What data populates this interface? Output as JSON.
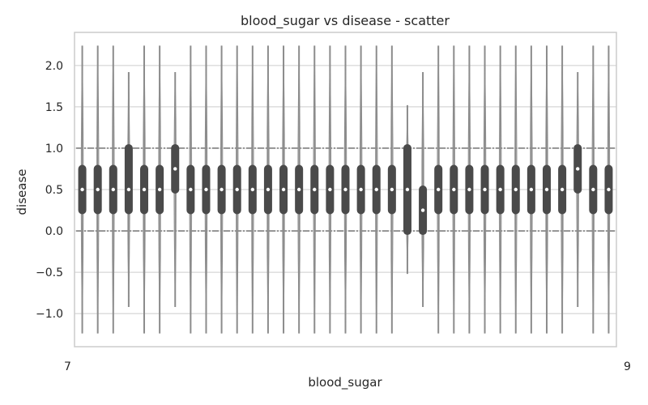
{
  "chart_data": {
    "type": "violin",
    "title": "blood_sugar vs disease - scatter",
    "xlabel": "blood_sugar",
    "ylabel": "disease",
    "ylim": [
      -1.4,
      2.4
    ],
    "yticks": [
      "−1.0",
      "−0.5",
      "0.0",
      "0.5",
      "1.0",
      "1.5",
      "2.0"
    ],
    "ytick_values": [
      -1.0,
      -0.5,
      0.0,
      0.5,
      1.0,
      1.5,
      2.0
    ],
    "xtick_first": "7",
    "xtick_last": "9",
    "grid": true,
    "violins": [
      {
        "q1": 0.25,
        "median": 0.5,
        "q3": 0.75,
        "min": -1.24,
        "max": 2.24
      },
      {
        "q1": 0.25,
        "median": 0.5,
        "q3": 0.75,
        "min": -1.24,
        "max": 2.24
      },
      {
        "q1": 0.25,
        "median": 0.5,
        "q3": 0.75,
        "min": -1.24,
        "max": 2.24
      },
      {
        "q1": 0.25,
        "median": 0.5,
        "q3": 1.0,
        "min": -0.92,
        "max": 1.92
      },
      {
        "q1": 0.25,
        "median": 0.5,
        "q3": 0.75,
        "min": -1.24,
        "max": 2.24
      },
      {
        "q1": 0.25,
        "median": 0.5,
        "q3": 0.75,
        "min": -1.24,
        "max": 2.24
      },
      {
        "q1": 0.5,
        "median": 0.75,
        "q3": 1.0,
        "min": -0.92,
        "max": 1.92
      },
      {
        "q1": 0.25,
        "median": 0.5,
        "q3": 0.75,
        "min": -1.24,
        "max": 2.24
      },
      {
        "q1": 0.25,
        "median": 0.5,
        "q3": 0.75,
        "min": -1.24,
        "max": 2.24
      },
      {
        "q1": 0.25,
        "median": 0.5,
        "q3": 0.75,
        "min": -1.24,
        "max": 2.24
      },
      {
        "q1": 0.25,
        "median": 0.5,
        "q3": 0.75,
        "min": -1.24,
        "max": 2.24
      },
      {
        "q1": 0.25,
        "median": 0.5,
        "q3": 0.75,
        "min": -1.24,
        "max": 2.24
      },
      {
        "q1": 0.25,
        "median": 0.5,
        "q3": 0.75,
        "min": -1.24,
        "max": 2.24
      },
      {
        "q1": 0.25,
        "median": 0.5,
        "q3": 0.75,
        "min": -1.24,
        "max": 2.24
      },
      {
        "q1": 0.25,
        "median": 0.5,
        "q3": 0.75,
        "min": -1.24,
        "max": 2.24
      },
      {
        "q1": 0.25,
        "median": 0.5,
        "q3": 0.75,
        "min": -1.24,
        "max": 2.24
      },
      {
        "q1": 0.25,
        "median": 0.5,
        "q3": 0.75,
        "min": -1.24,
        "max": 2.24
      },
      {
        "q1": 0.25,
        "median": 0.5,
        "q3": 0.75,
        "min": -1.24,
        "max": 2.24
      },
      {
        "q1": 0.25,
        "median": 0.5,
        "q3": 0.75,
        "min": -1.24,
        "max": 2.24
      },
      {
        "q1": 0.25,
        "median": 0.5,
        "q3": 0.75,
        "min": -1.24,
        "max": 2.24
      },
      {
        "q1": 0.25,
        "median": 0.5,
        "q3": 0.75,
        "min": -1.24,
        "max": 2.24
      },
      {
        "q1": 0.0,
        "median": 0.5,
        "q3": 1.0,
        "min": -0.52,
        "max": 1.52
      },
      {
        "q1": 0.0,
        "median": 0.25,
        "q3": 0.5,
        "min": -0.92,
        "max": 1.92
      },
      {
        "q1": 0.25,
        "median": 0.5,
        "q3": 0.75,
        "min": -1.24,
        "max": 2.24
      },
      {
        "q1": 0.25,
        "median": 0.5,
        "q3": 0.75,
        "min": -1.24,
        "max": 2.24
      },
      {
        "q1": 0.25,
        "median": 0.5,
        "q3": 0.75,
        "min": -1.24,
        "max": 2.24
      },
      {
        "q1": 0.25,
        "median": 0.5,
        "q3": 0.75,
        "min": -1.24,
        "max": 2.24
      },
      {
        "q1": 0.25,
        "median": 0.5,
        "q3": 0.75,
        "min": -1.24,
        "max": 2.24
      },
      {
        "q1": 0.25,
        "median": 0.5,
        "q3": 0.75,
        "min": -1.24,
        "max": 2.24
      },
      {
        "q1": 0.25,
        "median": 0.5,
        "q3": 0.75,
        "min": -1.24,
        "max": 2.24
      },
      {
        "q1": 0.25,
        "median": 0.5,
        "q3": 0.75,
        "min": -1.24,
        "max": 2.24
      },
      {
        "q1": 0.25,
        "median": 0.5,
        "q3": 0.75,
        "min": -1.24,
        "max": 2.24
      },
      {
        "q1": 0.5,
        "median": 0.75,
        "q3": 1.0,
        "min": -0.92,
        "max": 1.92
      },
      {
        "q1": 0.25,
        "median": 0.5,
        "q3": 0.75,
        "min": -1.24,
        "max": 2.24
      },
      {
        "q1": 0.25,
        "median": 0.5,
        "q3": 0.75,
        "min": -1.24,
        "max": 2.24
      }
    ]
  }
}
